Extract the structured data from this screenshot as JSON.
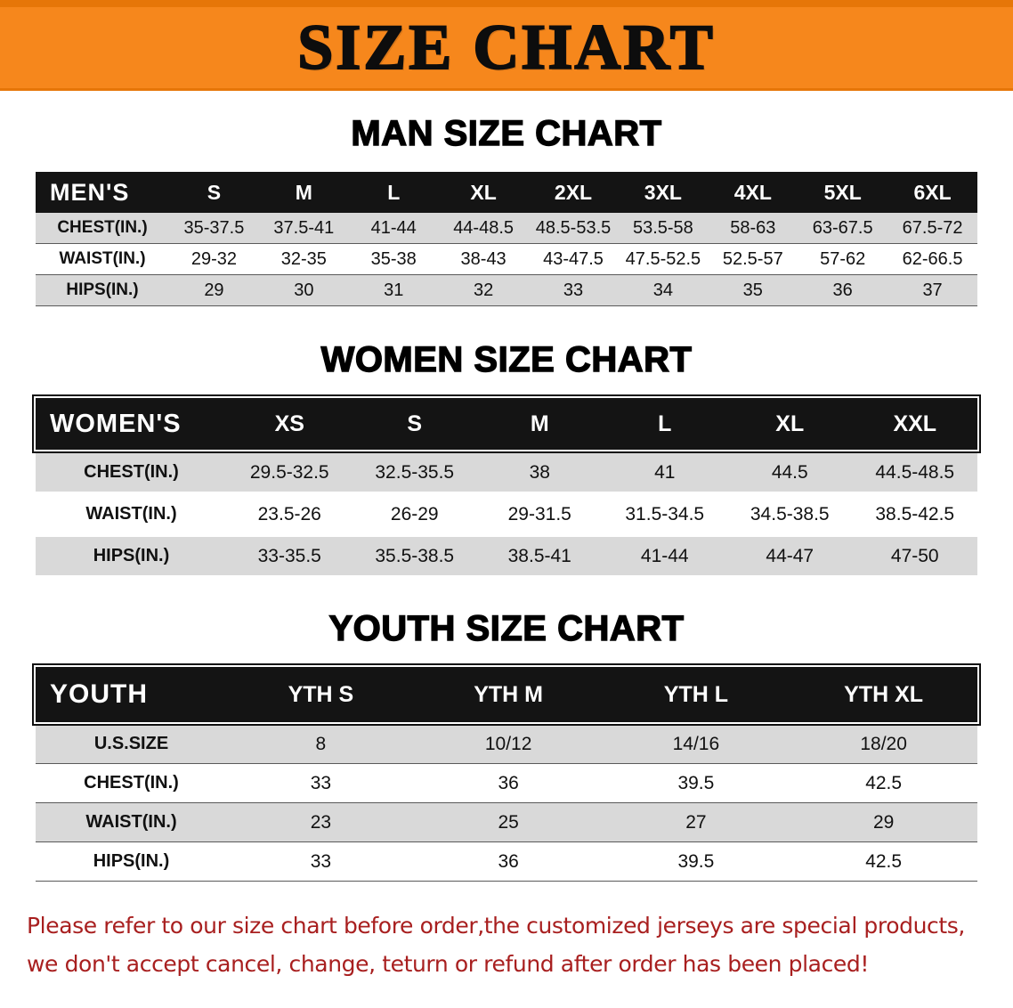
{
  "banner": {
    "title": "SIZE CHART"
  },
  "colors": {
    "banner_bg": "#f6871c",
    "table_header_bg": "#141414",
    "row_shade": "#d9d9d9",
    "disclaimer_text": "#a81f1f"
  },
  "chart_data": [
    {
      "type": "table",
      "title": "MAN SIZE CHART",
      "corner_label": "MEN'S",
      "columns": [
        "S",
        "M",
        "L",
        "XL",
        "2XL",
        "3XL",
        "4XL",
        "5XL",
        "6XL"
      ],
      "rows": [
        {
          "label": "CHEST(IN.)",
          "values": [
            "35-37.5",
            "37.5-41",
            "41-44",
            "44-48.5",
            "48.5-53.5",
            "53.5-58",
            "58-63",
            "63-67.5",
            "67.5-72"
          ]
        },
        {
          "label": "WAIST(IN.)",
          "values": [
            "29-32",
            "32-35",
            "35-38",
            "38-43",
            "43-47.5",
            "47.5-52.5",
            "52.5-57",
            "57-62",
            "62-66.5"
          ]
        },
        {
          "label": "HIPS(IN.)",
          "values": [
            "29",
            "30",
            "31",
            "32",
            "33",
            "34",
            "35",
            "36",
            "37"
          ]
        }
      ]
    },
    {
      "type": "table",
      "title": "WOMEN SIZE CHART",
      "corner_label": "WOMEN'S",
      "columns": [
        "XS",
        "S",
        "M",
        "L",
        "XL",
        "XXL"
      ],
      "rows": [
        {
          "label": "CHEST(IN.)",
          "values": [
            "29.5-32.5",
            "32.5-35.5",
            "38",
            "41",
            "44.5",
            "44.5-48.5"
          ]
        },
        {
          "label": "WAIST(IN.)",
          "values": [
            "23.5-26",
            "26-29",
            "29-31.5",
            "31.5-34.5",
            "34.5-38.5",
            "38.5-42.5"
          ]
        },
        {
          "label": "HIPS(IN.)",
          "values": [
            "33-35.5",
            "35.5-38.5",
            "38.5-41",
            "41-44",
            "44-47",
            "47-50"
          ]
        }
      ]
    },
    {
      "type": "table",
      "title": "YOUTH SIZE CHART",
      "corner_label": "YOUTH",
      "columns": [
        "YTH S",
        "YTH M",
        "YTH L",
        "YTH XL"
      ],
      "rows": [
        {
          "label": "U.S.SIZE",
          "values": [
            "8",
            "10/12",
            "14/16",
            "18/20"
          ]
        },
        {
          "label": "CHEST(IN.)",
          "values": [
            "33",
            "36",
            "39.5",
            "42.5"
          ]
        },
        {
          "label": "WAIST(IN.)",
          "values": [
            "23",
            "25",
            "27",
            "29"
          ]
        },
        {
          "label": "HIPS(IN.)",
          "values": [
            "33",
            "36",
            "39.5",
            "42.5"
          ]
        }
      ]
    }
  ],
  "footer": {
    "line1": "Please refer to our size chart before order,the customized jerseys are special products,",
    "line2": "we don't accept cancel, change, teturn or refund after order has been placed!"
  }
}
